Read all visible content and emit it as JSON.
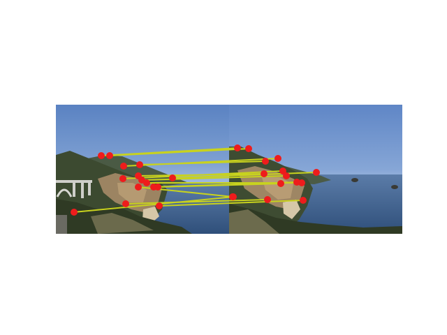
{
  "figure": {
    "background": "#ffffff",
    "panels": [
      "left-photo",
      "right-photo"
    ],
    "colors": {
      "match_line": "#c8d21e",
      "keypoint": "#ee1c1c",
      "sky_top": "#5f86c4",
      "sky_horizon": "#b8c9e2",
      "ocean": "#3a5c86",
      "cliff_dark": "#2e3a26",
      "cliff_rock": "#a08a66",
      "foreground": "#3a3a2c"
    },
    "match_count": 19
  }
}
